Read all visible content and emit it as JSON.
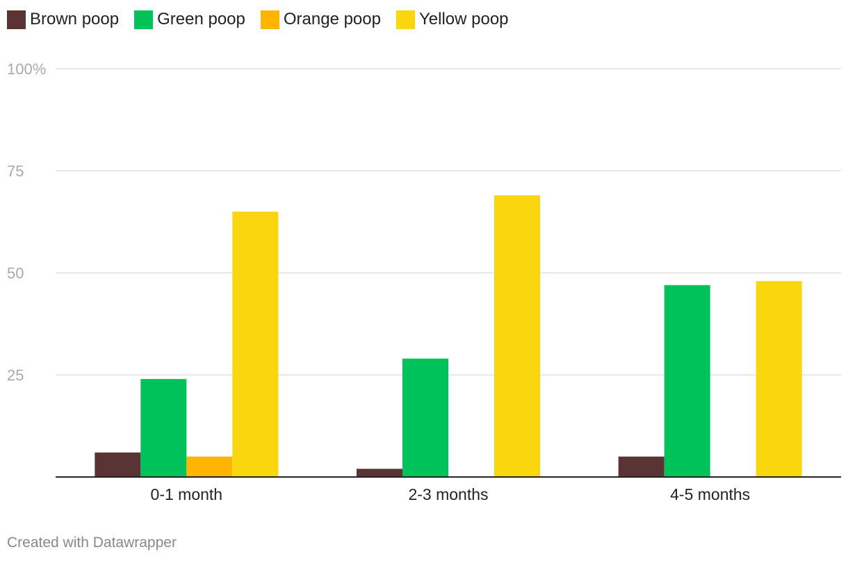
{
  "chart_data": {
    "type": "bar",
    "categories": [
      "0-1 month",
      "2-3 months",
      "4-5 months"
    ],
    "series": [
      {
        "name": "Brown poop",
        "color": "#5a3335",
        "values": [
          6,
          2,
          5
        ]
      },
      {
        "name": "Green poop",
        "color": "#00c25a",
        "values": [
          24,
          29,
          47
        ]
      },
      {
        "name": "Orange poop",
        "color": "#ffb400",
        "values": [
          5,
          0,
          0
        ]
      },
      {
        "name": "Yellow poop",
        "color": "#fad60f",
        "values": [
          65,
          69,
          48
        ]
      }
    ],
    "y_ticks": [
      "25",
      "50",
      "75",
      "100%"
    ],
    "y_tick_values": [
      25,
      50,
      75,
      100
    ],
    "ylim": [
      0,
      100
    ],
    "grid": true,
    "legend": "top-left"
  },
  "footer": {
    "credit": "Created with Datawrapper"
  }
}
